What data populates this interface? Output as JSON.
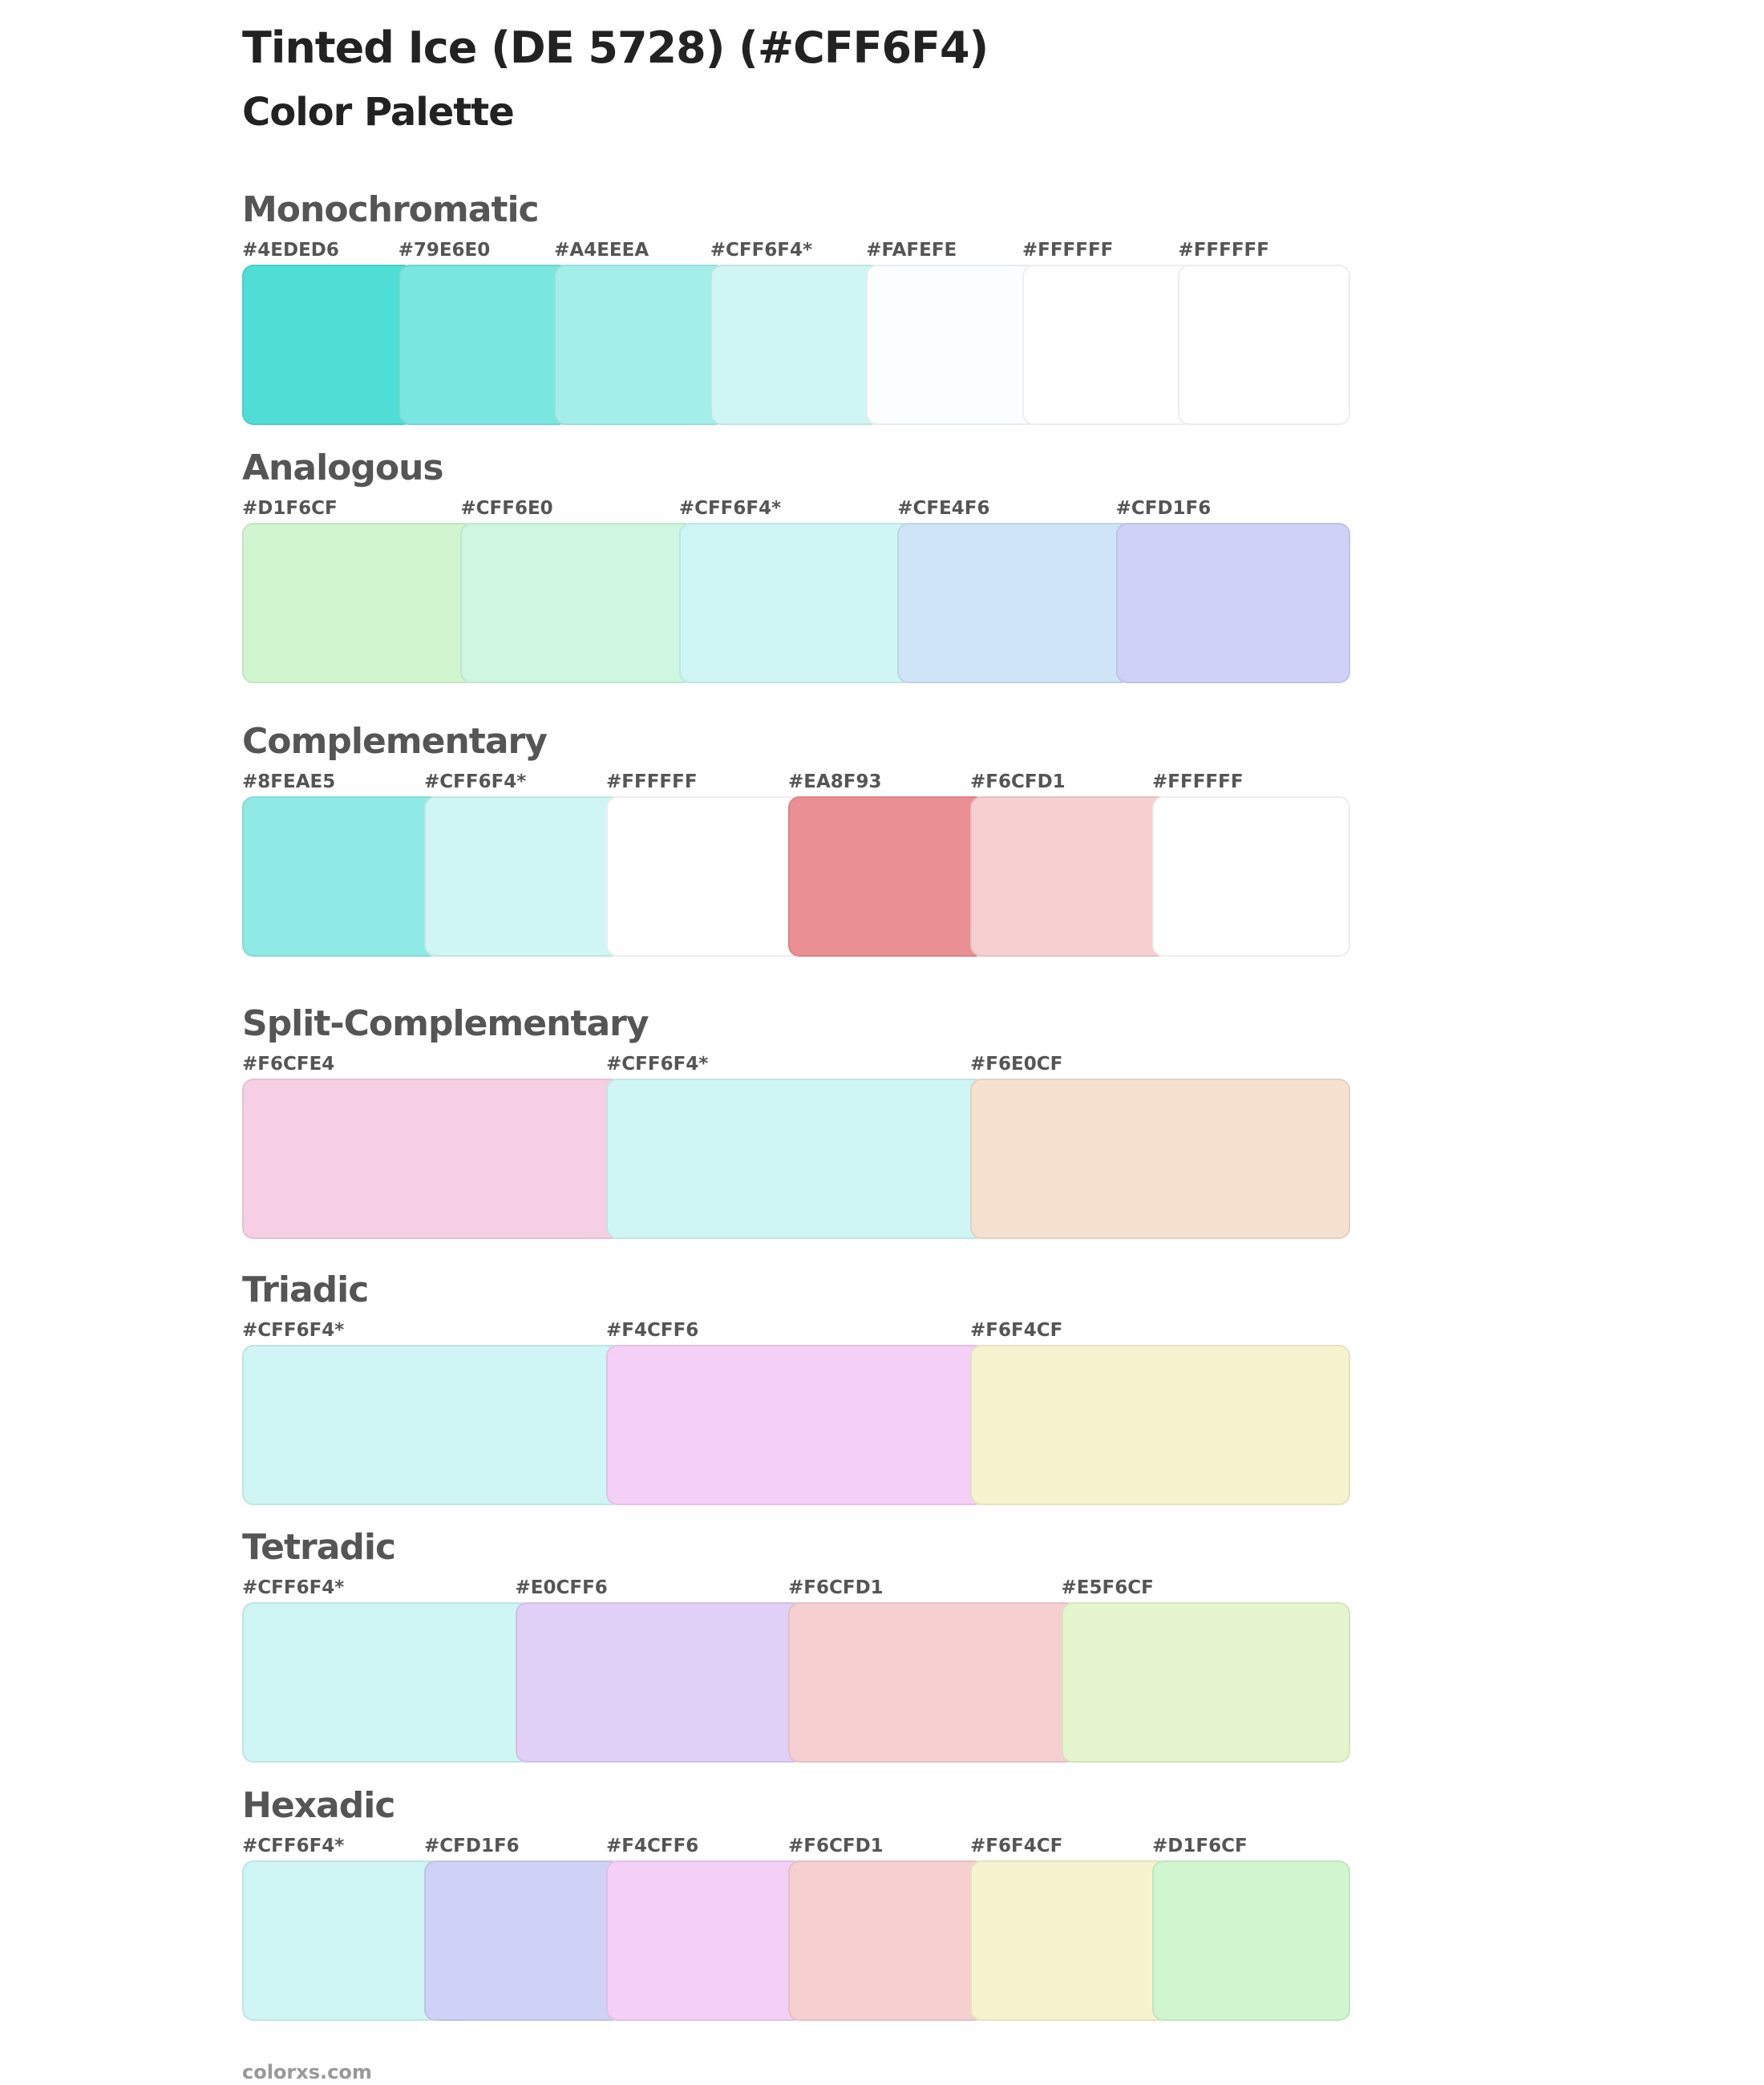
{
  "header": {
    "title": "Tinted Ice (DE 5728) (#CFF6F4)",
    "subtitle": "Color Palette"
  },
  "sections": [
    {
      "title": "Monochromatic",
      "swatches": [
        "#4EDED6",
        "#79E6E0",
        "#A4EEEA",
        "#CFF6F4*",
        "#FAFEFE",
        "#FFFFFF",
        "#FFFFFF"
      ]
    },
    {
      "title": "Analogous",
      "swatches": [
        "#D1F6CF",
        "#CFF6E0",
        "#CFF6F4*",
        "#CFE4F6",
        "#CFD1F6"
      ]
    },
    {
      "title": "Complementary",
      "swatches": [
        "#8FEAE5",
        "#CFF6F4*",
        "#FFFFFF",
        "#EA8F93",
        "#F6CFD1",
        "#FFFFFF"
      ]
    },
    {
      "title": "Split-Complementary",
      "swatches": [
        "#F6CFE4",
        "#CFF6F4*",
        "#F6E0CF"
      ]
    },
    {
      "title": "Triadic",
      "swatches": [
        "#CFF6F4*",
        "#F4CFF6",
        "#F6F4CF"
      ]
    },
    {
      "title": "Tetradic",
      "swatches": [
        "#CFF6F4*",
        "#E0CFF6",
        "#F6CFD1",
        "#E5F6CF"
      ]
    },
    {
      "title": "Hexadic",
      "swatches": [
        "#CFF6F4*",
        "#CFD1F6",
        "#F4CFF6",
        "#F6CFD1",
        "#F6F4CF",
        "#D1F6CF"
      ]
    }
  ],
  "footer": "colorxs.com"
}
